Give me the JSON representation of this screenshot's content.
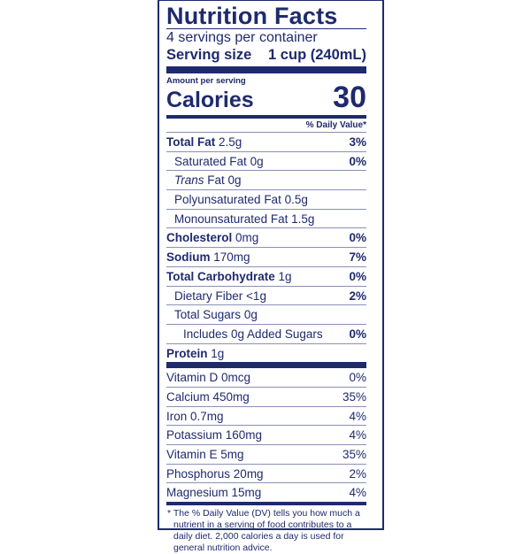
{
  "title": "Nutrition Facts",
  "servings_per_container": "4 servings per container",
  "serving_size": {
    "label": "Serving size",
    "value": "1 cup (240mL)"
  },
  "amount_per_serving": "Amount per serving",
  "calories": {
    "label": "Calories",
    "value": "30"
  },
  "daily_value_header": "% Daily Value*",
  "nutrients": [
    {
      "name": "Total Fat",
      "amount": "2.5g",
      "dv": "3%"
    },
    {
      "name": "Saturated Fat",
      "amount": "0g",
      "dv": "0%"
    },
    {
      "name": "Trans",
      "name_suffix": "Fat 0g",
      "dv": ""
    },
    {
      "name": "Polyunsaturated Fat",
      "amount": "0.5g",
      "dv": ""
    },
    {
      "name": "Monounsaturated Fat",
      "amount": "1.5g",
      "dv": ""
    },
    {
      "name": "Cholesterol",
      "amount": "0mg",
      "dv": "0%"
    },
    {
      "name": "Sodium",
      "amount": "170mg",
      "dv": "7%"
    },
    {
      "name": "Total Carbohydrate",
      "amount": "1g",
      "dv": "0%"
    },
    {
      "name": "Dietary Fiber",
      "amount": "<1g",
      "dv": "2%"
    },
    {
      "name": "Total Sugars",
      "amount": "0g",
      "dv": ""
    },
    {
      "name": "Includes 0g Added Sugars",
      "amount": "",
      "dv": "0%"
    },
    {
      "name": "Protein",
      "amount": "1g",
      "dv": ""
    }
  ],
  "vitamins": [
    {
      "text": "Vitamin D 0mcg",
      "dv": "0%"
    },
    {
      "text": "Calcium 450mg",
      "dv": "35%"
    },
    {
      "text": "Iron 0.7mg",
      "dv": "4%"
    },
    {
      "text": "Potassium 160mg",
      "dv": "4%"
    },
    {
      "text": "Vitamin E 5mg",
      "dv": "35%"
    },
    {
      "text": "Phosphorus 20mg",
      "dv": "2%"
    },
    {
      "text": "Magnesium 15mg",
      "dv": "4%"
    }
  ],
  "footnote": "* The % Daily Value (DV) tells you how much a nutrient in a serving of food contributes to a daily diet. 2,000 calories a day is used for general nutrition advice.",
  "colors": {
    "ink": "#1f2a6e"
  }
}
